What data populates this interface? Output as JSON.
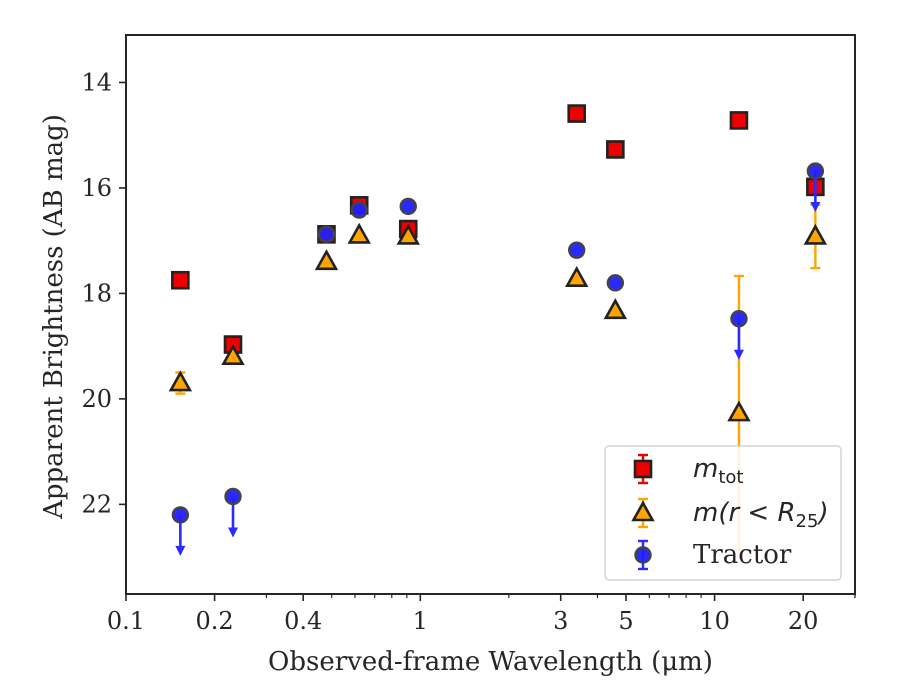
{
  "chart_data": {
    "type": "scatter",
    "xlabel": "Observed-frame Wavelength (μm)",
    "ylabel": "Apparent Brightness (AB mag)",
    "xscale": "log",
    "xlim": [
      0.1,
      30
    ],
    "ylim": [
      23.7,
      13.1
    ],
    "y_inverted": true,
    "x_ticks": [
      0.1,
      0.2,
      0.4,
      1,
      3,
      5,
      10,
      20
    ],
    "x_tick_labels": [
      "0.1",
      "0.2",
      "0.4",
      "1",
      "3",
      "5",
      "10",
      "20"
    ],
    "y_ticks": [
      14,
      16,
      18,
      20,
      22
    ],
    "y_tick_labels": [
      "14",
      "16",
      "18",
      "20",
      "22"
    ],
    "grid": false,
    "legend_position": "lower-right",
    "series": [
      {
        "key": "mtot",
        "marker": "square",
        "color": "#ee0000",
        "edge_color": "#222222",
        "error_color": "#ee0000",
        "points": [
          {
            "x": 0.153,
            "y": 17.75
          },
          {
            "x": 0.231,
            "y": 18.97
          },
          {
            "x": 0.48,
            "y": 16.88
          },
          {
            "x": 0.62,
            "y": 16.33
          },
          {
            "x": 0.91,
            "y": 16.78
          },
          {
            "x": 3.4,
            "y": 14.59
          },
          {
            "x": 4.6,
            "y": 15.27
          },
          {
            "x": 12.1,
            "y": 14.72
          },
          {
            "x": 22.0,
            "y": 15.98
          }
        ]
      },
      {
        "key": "mr25",
        "marker": "triangle",
        "color": "#ffa500",
        "edge_color": "#222222",
        "error_color": "#ffa500",
        "points": [
          {
            "x": 0.153,
            "y": 19.7,
            "err": 0.2
          },
          {
            "x": 0.231,
            "y": 19.2
          },
          {
            "x": 0.48,
            "y": 17.4
          },
          {
            "x": 0.62,
            "y": 16.9
          },
          {
            "x": 0.91,
            "y": 16.92
          },
          {
            "x": 3.4,
            "y": 17.72
          },
          {
            "x": 4.6,
            "y": 18.33
          },
          {
            "x": 12.1,
            "y": 20.27,
            "err_low": 2.6,
            "err_high": 2.6
          },
          {
            "x": 22.0,
            "y": 16.92,
            "err_low": 0.6,
            "err_high": 0.6
          }
        ]
      },
      {
        "key": "tractor",
        "marker": "circle",
        "color": "#1f1fff",
        "edge_color": "#444444",
        "error_color": "#2b2bff",
        "points": [
          {
            "x": 0.153,
            "y": 22.2,
            "upper_limit": true
          },
          {
            "x": 0.231,
            "y": 21.85,
            "upper_limit": true
          },
          {
            "x": 0.48,
            "y": 16.88
          },
          {
            "x": 0.62,
            "y": 16.42
          },
          {
            "x": 0.91,
            "y": 16.35
          },
          {
            "x": 3.4,
            "y": 17.18
          },
          {
            "x": 4.6,
            "y": 17.8
          },
          {
            "x": 12.1,
            "y": 18.48,
            "upper_limit": true
          },
          {
            "x": 22.0,
            "y": 15.68,
            "upper_limit": true
          }
        ]
      }
    ],
    "legend": [
      {
        "key": "mtot",
        "base": "m",
        "sub": "tot",
        "marker": "square"
      },
      {
        "key": "mr25",
        "base": "m(r < R",
        "sub": "25",
        "tail": ")",
        "marker": "triangle"
      },
      {
        "key": "tractor",
        "text": "Tractor",
        "marker": "circle"
      }
    ]
  }
}
